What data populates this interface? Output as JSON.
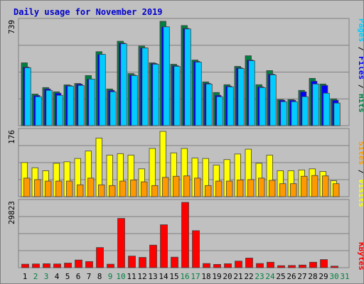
{
  "title": "Daily usage for November 2019",
  "colors": {
    "title": "#0000cc",
    "frame": "#c0c0c0",
    "pages": "#00ccff",
    "files": "#0000ff",
    "hits": "#008040",
    "visits": "#ffff00",
    "sites": "#ff9900",
    "kbytes": "#ff0000",
    "weekend": "#008040",
    "weekday": "#000000"
  },
  "chart_data": [
    {
      "type": "bar",
      "name": "hits-files-pages",
      "y_max_label": "739",
      "ylim": [
        0,
        739
      ],
      "legend": [
        "Pages",
        "/",
        "Files",
        "/",
        "Hits"
      ],
      "categories": [
        "1",
        "2",
        "3",
        "4",
        "5",
        "6",
        "7",
        "8",
        "9",
        "10",
        "11",
        "12",
        "13",
        "14",
        "15",
        "16",
        "17",
        "18",
        "19",
        "20",
        "21",
        "22",
        "23",
        "24",
        "25",
        "26",
        "27",
        "28",
        "29",
        "30",
        "31"
      ],
      "series": [
        {
          "name": "Hits",
          "values": [
            445,
            224,
            270,
            240,
            289,
            299,
            355,
            524,
            260,
            598,
            369,
            564,
            445,
            739,
            435,
            709,
            465,
            310,
            235,
            290,
            420,
            495,
            290,
            390,
            185,
            185,
            250,
            335,
            295,
            190,
            0
          ]
        },
        {
          "name": "Files",
          "values": [
            415,
            214,
            260,
            230,
            284,
            294,
            330,
            505,
            250,
            585,
            359,
            551,
            440,
            700,
            425,
            689,
            455,
            300,
            215,
            280,
            410,
            465,
            275,
            365,
            180,
            180,
            240,
            315,
            285,
            180,
            0
          ]
        },
        {
          "name": "Pages",
          "values": [
            410,
            205,
            250,
            215,
            280,
            285,
            330,
            505,
            240,
            580,
            355,
            550,
            435,
            700,
            420,
            685,
            450,
            295,
            205,
            275,
            405,
            460,
            270,
            360,
            170,
            170,
            205,
            295,
            230,
            160,
            0
          ]
        }
      ]
    },
    {
      "type": "bar",
      "name": "visits-sites",
      "y_max_label": "176",
      "ylim": [
        0,
        176
      ],
      "legend": [
        "Sites",
        "/",
        "Visits"
      ],
      "categories": [
        "1",
        "2",
        "3",
        "4",
        "5",
        "6",
        "7",
        "8",
        "9",
        "10",
        "11",
        "12",
        "13",
        "14",
        "15",
        "16",
        "17",
        "18",
        "19",
        "20",
        "21",
        "22",
        "23",
        "24",
        "25",
        "26",
        "27",
        "28",
        "29",
        "30",
        "31"
      ],
      "series": [
        {
          "name": "Visits",
          "values": [
            92,
            78,
            70,
            90,
            94,
            103,
            123,
            158,
            112,
            116,
            112,
            75,
            130,
            176,
            118,
            130,
            104,
            103,
            85,
            100,
            115,
            128,
            90,
            112,
            70,
            70,
            72,
            75,
            68,
            43,
            0
          ]
        },
        {
          "name": "Sites",
          "values": [
            50,
            46,
            42,
            42,
            42,
            32,
            50,
            32,
            30,
            42,
            45,
            40,
            30,
            52,
            55,
            56,
            50,
            30,
            42,
            42,
            45,
            46,
            50,
            44,
            35,
            35,
            55,
            57,
            56,
            35,
            0
          ]
        }
      ]
    },
    {
      "type": "bar",
      "name": "kbytes",
      "y_max_label": "29823",
      "ylim": [
        0,
        29823
      ],
      "legend": [
        "KBytes"
      ],
      "categories": [
        "1",
        "2",
        "3",
        "4",
        "5",
        "6",
        "7",
        "8",
        "9",
        "10",
        "11",
        "12",
        "13",
        "14",
        "15",
        "16",
        "17",
        "18",
        "19",
        "20",
        "21",
        "22",
        "23",
        "24",
        "25",
        "26",
        "27",
        "28",
        "29",
        "30",
        "31"
      ],
      "series": [
        {
          "name": "KBytes",
          "values": [
            1600,
            1700,
            1800,
            1700,
            2100,
            3500,
            2800,
            9200,
            1600,
            22500,
            5300,
            4700,
            10300,
            19600,
            4800,
            29823,
            16900,
            1900,
            1500,
            1800,
            3000,
            4400,
            1900,
            2500,
            900,
            1000,
            1200,
            2500,
            3700,
            700,
            0
          ]
        }
      ]
    }
  ],
  "x_axis": {
    "days": [
      1,
      2,
      3,
      4,
      5,
      6,
      7,
      8,
      9,
      10,
      11,
      12,
      13,
      14,
      15,
      16,
      17,
      18,
      19,
      20,
      21,
      22,
      23,
      24,
      25,
      26,
      27,
      28,
      29,
      30,
      31
    ],
    "weekend_days": [
      2,
      3,
      9,
      10,
      16,
      17,
      23,
      24,
      30,
      31
    ]
  }
}
